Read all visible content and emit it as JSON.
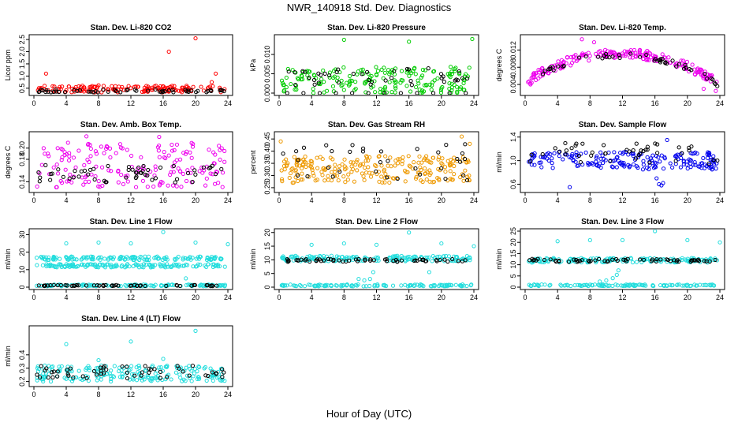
{
  "figure": {
    "title": "NWR_140918  Std. Dev. Diagnostics",
    "xlabel": "Hour of Day (UTC)"
  },
  "chart_data": [
    {
      "type": "scatter",
      "title": "Stan. Dev. Li-820 CO2",
      "ylabel": "Licor ppm",
      "xlim": [
        0,
        24
      ],
      "ylim": [
        0.3,
        2.6
      ],
      "x_ticks": [
        0,
        4,
        8,
        12,
        16,
        20,
        24
      ],
      "y_ticks": [
        0.5,
        1.0,
        1.5,
        2.0,
        2.5
      ],
      "y_tick_labels": [
        "0.5",
        "1.0",
        "1.5",
        "2.0",
        "2.5"
      ],
      "series": [
        {
          "color": "#ff0000",
          "band": {
            "y_min": 0.33,
            "y_max": 0.6,
            "density": 150
          },
          "points": [
            {
              "x": 1.5,
              "y": 1.1
            },
            {
              "x": 6.0,
              "y": 0.6
            },
            {
              "x": 16.7,
              "y": 2.0
            },
            {
              "x": 20.0,
              "y": 2.55
            },
            {
              "x": 22.5,
              "y": 1.1
            },
            {
              "x": 22.0,
              "y": 0.75
            },
            {
              "x": 3.2,
              "y": 0.55
            },
            {
              "x": 8.0,
              "y": 0.62
            }
          ]
        },
        {
          "color": "#000000",
          "band": {
            "y_min": 0.33,
            "y_max": 0.45,
            "density": 55
          },
          "points": []
        }
      ]
    },
    {
      "type": "scatter",
      "title": "Stan. Dev. Li-820 Pressure",
      "ylabel": "kPa",
      "xlim": [
        0,
        24
      ],
      "ylim": [
        0,
        0.0145
      ],
      "x_ticks": [
        0,
        4,
        8,
        12,
        16,
        20,
        24
      ],
      "y_ticks": [
        0,
        0.005,
        0.01
      ],
      "y_tick_labels": [
        "0.000",
        "0.005",
        "0.010"
      ],
      "series": [
        {
          "color": "#00cc00",
          "band": {
            "y_min": 0.0,
            "y_max": 0.0068,
            "density": 190
          },
          "points": [
            {
              "x": 8.0,
              "y": 0.0138
            },
            {
              "x": 16.0,
              "y": 0.0133
            },
            {
              "x": 23.8,
              "y": 0.014
            }
          ]
        },
        {
          "color": "#000000",
          "band": {
            "y_min": 0.002,
            "y_max": 0.0066,
            "density": 40
          },
          "points": [
            {
              "x": 1.0,
              "y": 0.0
            },
            {
              "x": 3.0,
              "y": 0.0
            },
            {
              "x": 5.0,
              "y": 0.0
            },
            {
              "x": 7.0,
              "y": 0.0
            },
            {
              "x": 9.0,
              "y": 0.0
            },
            {
              "x": 11.0,
              "y": 0.0
            },
            {
              "x": 13.0,
              "y": 0.0
            },
            {
              "x": 15.0,
              "y": 0.0
            },
            {
              "x": 17.0,
              "y": 0.0
            },
            {
              "x": 19.0,
              "y": 0.0
            },
            {
              "x": 21.0,
              "y": 0.0
            },
            {
              "x": 23.0,
              "y": 0.0
            }
          ]
        }
      ]
    },
    {
      "type": "scatter",
      "title": "Stan. Dev. Li-820 Temp.",
      "ylabel": "degrees C",
      "xlim": [
        0,
        24
      ],
      "ylim": [
        0.002,
        0.015
      ],
      "x_ticks": [
        0,
        4,
        8,
        12,
        16,
        20,
        24
      ],
      "y_ticks": [
        0.004,
        0.008,
        0.012
      ],
      "y_tick_labels": [
        "0.004",
        "0.008",
        "0.012"
      ],
      "series": [
        {
          "color": "#ee00ee",
          "curve": {
            "shape": "hump",
            "y_start": 0.0045,
            "y_peak": 0.0115,
            "y_end": 0.004,
            "spread": 0.0022,
            "density": 210
          },
          "points": [
            {
              "x": 7.0,
              "y": 0.0145
            },
            {
              "x": 8.5,
              "y": 0.0138
            },
            {
              "x": 22.0,
              "y": 0.003
            },
            {
              "x": 23.5,
              "y": 0.0025
            }
          ]
        },
        {
          "color": "#000000",
          "curve": {
            "shape": "hump",
            "y_start": 0.0045,
            "y_peak": 0.011,
            "y_end": 0.004,
            "spread": 0.0012,
            "density": 50
          },
          "points": []
        }
      ]
    },
    {
      "type": "scatter",
      "title": "Stan. Dev. Amb. Box Temp.",
      "ylabel": "degrees C",
      "xlim": [
        0,
        24
      ],
      "ylim": [
        0.125,
        0.225
      ],
      "x_ticks": [
        0,
        4,
        8,
        12,
        16,
        20,
        24
      ],
      "y_ticks": [
        0.14,
        0.18,
        0.2
      ],
      "y_tick_labels": [
        "0.14",
        "0.18",
        "0.20"
      ],
      "series": [
        {
          "color": "#ee00ee",
          "band": {
            "y_min": 0.13,
            "y_max": 0.21,
            "density": 170
          },
          "points": [
            {
              "x": 6.5,
              "y": 0.221
            },
            {
              "x": 15.5,
              "y": 0.22
            }
          ]
        },
        {
          "color": "#000000",
          "band": {
            "y_min": 0.138,
            "y_max": 0.17,
            "density": 55
          },
          "points": []
        }
      ]
    },
    {
      "type": "scatter",
      "title": "Stan. Dev. Gas Stream RH",
      "ylabel": "percent",
      "xlim": [
        0,
        24
      ],
      "ylim": [
        0.24,
        0.47
      ],
      "x_ticks": [
        0,
        4,
        8,
        12,
        16,
        20,
        24
      ],
      "y_ticks": [
        0.25,
        0.3,
        0.35,
        0.4,
        0.45
      ],
      "y_tick_labels": [
        "0.25",
        "0.30",
        "0.35",
        "0.40",
        "0.45"
      ],
      "series": [
        {
          "color": "#ee9900",
          "band": {
            "y_min": 0.27,
            "y_max": 0.38,
            "density": 230
          },
          "points": [
            {
              "x": 0.2,
              "y": 0.44
            },
            {
              "x": 22.5,
              "y": 0.46
            },
            {
              "x": 23.5,
              "y": 0.43
            }
          ]
        },
        {
          "color": "#000000",
          "band": {
            "y_min": 0.28,
            "y_max": 0.43,
            "density": 35
          },
          "points": []
        }
      ]
    },
    {
      "type": "scatter",
      "title": "Stan. Dev. Sample Flow",
      "ylabel": "ml/min",
      "xlim": [
        0,
        24
      ],
      "ylim": [
        0.5,
        1.45
      ],
      "x_ticks": [
        0,
        4,
        8,
        12,
        16,
        20,
        24
      ],
      "y_ticks": [
        0.6,
        1.0,
        1.4
      ],
      "y_tick_labels": [
        "0.6",
        "1.0",
        "1.4"
      ],
      "series": [
        {
          "color": "#0000ee",
          "band": {
            "y_min": 0.85,
            "y_max": 1.15,
            "density": 190
          },
          "points": [
            {
              "x": 5.5,
              "y": 0.55
            },
            {
              "x": 16.5,
              "y": 0.6
            },
            {
              "x": 16.8,
              "y": 0.58
            },
            {
              "x": 17.0,
              "y": 0.62
            },
            {
              "x": 16.2,
              "y": 0.7
            },
            {
              "x": 17.5,
              "y": 1.35
            }
          ]
        },
        {
          "color": "#000000",
          "band": {
            "y_min": 0.95,
            "y_max": 1.3,
            "density": 45
          },
          "points": []
        }
      ]
    },
    {
      "type": "scatter",
      "title": "Stan. Dev. Line 1 Flow",
      "ylabel": "ml/min",
      "xlim": [
        0,
        24
      ],
      "ylim": [
        0,
        32
      ],
      "x_ticks": [
        0,
        4,
        8,
        12,
        16,
        20,
        24
      ],
      "y_ticks": [
        0,
        10,
        20,
        30
      ],
      "y_tick_labels": [
        "0",
        "10",
        "20",
        "30"
      ],
      "series": [
        {
          "color": "#22dddd",
          "band": {
            "y_min": 15.5,
            "y_max": 17.5,
            "density": 140
          },
          "points": [
            {
              "x": 4.0,
              "y": 25.0
            },
            {
              "x": 8.0,
              "y": 25.5
            },
            {
              "x": 12.0,
              "y": 25.0
            },
            {
              "x": 16.0,
              "y": 31.5
            },
            {
              "x": 20.0,
              "y": 25.5
            },
            {
              "x": 24.0,
              "y": 24.5
            },
            {
              "x": 18.8,
              "y": 5.0
            }
          ]
        },
        {
          "color": "#22dddd",
          "band": {
            "y_min": 11.3,
            "y_max": 13.2,
            "density": 140
          },
          "points": []
        },
        {
          "color": "#22dddd",
          "band": {
            "y_min": 0.5,
            "y_max": 1.5,
            "density": 120
          },
          "points": []
        },
        {
          "color": "#000000",
          "band": {
            "y_min": 0.6,
            "y_max": 1.2,
            "density": 50
          },
          "points": []
        }
      ]
    },
    {
      "type": "scatter",
      "title": "Stan. Dev. Line 2 Flow",
      "ylabel": "ml/min",
      "xlim": [
        0,
        24
      ],
      "ylim": [
        0,
        20.5
      ],
      "x_ticks": [
        0,
        4,
        8,
        12,
        16,
        20,
        24
      ],
      "y_ticks": [
        0,
        5,
        10,
        15,
        20
      ],
      "y_tick_labels": [
        "0",
        "5",
        "10",
        "15",
        "20"
      ],
      "series": [
        {
          "color": "#22dddd",
          "band": {
            "y_min": 9.5,
            "y_max": 11.5,
            "density": 180
          },
          "points": [
            {
              "x": 4.0,
              "y": 15.5
            },
            {
              "x": 8.0,
              "y": 16.0
            },
            {
              "x": 12.0,
              "y": 15.5
            },
            {
              "x": 16.0,
              "y": 20.0
            },
            {
              "x": 20.0,
              "y": 16.0
            },
            {
              "x": 24.0,
              "y": 15.0
            },
            {
              "x": 10.5,
              "y": 2.5
            },
            {
              "x": 11.2,
              "y": 3.0
            },
            {
              "x": 11.6,
              "y": 5.5
            },
            {
              "x": 18.5,
              "y": 5.5
            },
            {
              "x": 9.8,
              "y": 3.0
            }
          ]
        },
        {
          "color": "#22dddd",
          "band": {
            "y_min": 0.3,
            "y_max": 1.0,
            "density": 110
          },
          "points": []
        },
        {
          "color": "#000000",
          "band": {
            "y_min": 9.3,
            "y_max": 10.3,
            "density": 60
          },
          "points": []
        }
      ]
    },
    {
      "type": "scatter",
      "title": "Stan. Dev. Line 3 Flow",
      "ylabel": "ml/min",
      "xlim": [
        0,
        24
      ],
      "ylim": [
        0,
        25
      ],
      "x_ticks": [
        0,
        4,
        8,
        12,
        16,
        20,
        24
      ],
      "y_ticks": [
        0,
        5,
        10,
        15,
        20,
        25
      ],
      "y_tick_labels": [
        "0",
        "5",
        "10",
        "15",
        "20",
        "25"
      ],
      "series": [
        {
          "color": "#22dddd",
          "band": {
            "y_min": 11.0,
            "y_max": 13.0,
            "density": 170
          },
          "points": [
            {
              "x": 4.0,
              "y": 20.5
            },
            {
              "x": 8.0,
              "y": 21.0
            },
            {
              "x": 12.0,
              "y": 21.0
            },
            {
              "x": 16.0,
              "y": 25.0
            },
            {
              "x": 20.0,
              "y": 21.0
            },
            {
              "x": 24.0,
              "y": 20.0
            },
            {
              "x": 10.0,
              "y": 3.0
            },
            {
              "x": 10.8,
              "y": 4.0
            },
            {
              "x": 11.3,
              "y": 5.5
            },
            {
              "x": 11.5,
              "y": 7.5
            },
            {
              "x": 9.2,
              "y": 2.5
            }
          ]
        },
        {
          "color": "#22dddd",
          "band": {
            "y_min": 0.5,
            "y_max": 1.2,
            "density": 110
          },
          "points": []
        },
        {
          "color": "#000000",
          "band": {
            "y_min": 11.3,
            "y_max": 12.6,
            "density": 60
          },
          "points": []
        }
      ]
    },
    {
      "type": "scatter",
      "title": "Stan. Dev. Line 4 (LT) Flow",
      "ylabel": "ml/min",
      "xlim": [
        0,
        24
      ],
      "ylim": [
        0.18,
        0.6
      ],
      "x_ticks": [
        0,
        4,
        8,
        12,
        16,
        20,
        24
      ],
      "y_ticks": [
        0.2,
        0.3,
        0.4
      ],
      "y_tick_labels": [
        "0.2",
        "0.3",
        "0.4"
      ],
      "series": [
        {
          "color": "#22dddd",
          "band": {
            "y_min": 0.2,
            "y_max": 0.32,
            "density": 200
          },
          "points": [
            {
              "x": 4.0,
              "y": 0.48
            },
            {
              "x": 12.0,
              "y": 0.5
            },
            {
              "x": 20.0,
              "y": 0.58
            },
            {
              "x": 8.0,
              "y": 0.36
            },
            {
              "x": 16.0,
              "y": 0.37
            }
          ]
        },
        {
          "color": "#000000",
          "band": {
            "y_min": 0.22,
            "y_max": 0.32,
            "density": 55
          },
          "points": []
        }
      ]
    }
  ]
}
